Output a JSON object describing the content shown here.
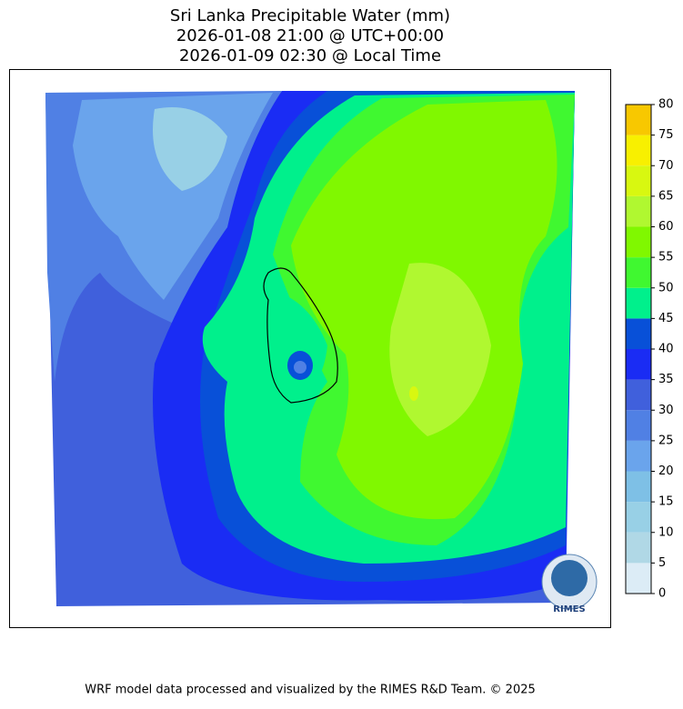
{
  "title_lines": [
    "Sri Lanka Precipitable Water (mm)",
    "2026-01-08 21:00 @ UTC+00:00",
    "2026-01-09 02:30 @ Local Time"
  ],
  "colorbar": {
    "range": [
      0,
      80
    ],
    "ticks": [
      0,
      5,
      10,
      15,
      20,
      25,
      30,
      35,
      40,
      45,
      50,
      55,
      60,
      65,
      70,
      75,
      80
    ],
    "colors": [
      "#dcecf6",
      "#b0d8e6",
      "#98d0e6",
      "#7ec0e6",
      "#6aa4ec",
      "#5080e4",
      "#4060dc",
      "#1a2cf4",
      "#0850d8",
      "#00f08c",
      "#40f830",
      "#80f800",
      "#b0f830",
      "#d8f810",
      "#f8f000",
      "#f8c800"
    ]
  },
  "logo_text": "RIMES",
  "footer": "WRF model data processed and visualized by the RIMES R&D Team. © 2025"
}
